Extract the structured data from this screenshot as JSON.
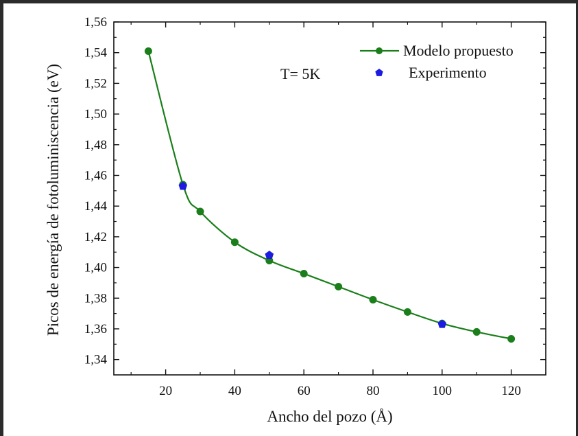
{
  "chart_data": {
    "type": "line",
    "xlabel": "Ancho del pozo (Å)",
    "ylabel": "Picos de energía de fotoluminiscencia (eV)",
    "annotation": "T= 5K",
    "xlim": [
      5,
      130
    ],
    "ylim": [
      1.33,
      1.56
    ],
    "x_ticks": [
      20,
      40,
      60,
      80,
      100,
      120
    ],
    "x_tick_labels": [
      "20",
      "40",
      "60",
      "80",
      "100",
      "120"
    ],
    "y_ticks": [
      1.34,
      1.36,
      1.38,
      1.4,
      1.42,
      1.44,
      1.46,
      1.48,
      1.5,
      1.52,
      1.54,
      1.56
    ],
    "y_tick_labels": [
      "1,34",
      "1,36",
      "1,38",
      "1,40",
      "1,42",
      "1,44",
      "1,46",
      "1,48",
      "1,50",
      "1,52",
      "1,54",
      "1,56"
    ],
    "grid": false,
    "legend_position": "top-right",
    "series": [
      {
        "name": "Modelo propuesto",
        "type": "line-marker",
        "marker": "circle",
        "color": "#1a7f1a",
        "x": [
          15,
          25,
          30,
          40,
          50,
          60,
          70,
          80,
          90,
          100,
          110,
          120
        ],
        "y": [
          1.541,
          1.454,
          1.4365,
          1.4165,
          1.4045,
          1.396,
          1.3875,
          1.379,
          1.371,
          1.3635,
          1.358,
          1.3535
        ]
      },
      {
        "name": "Experimento",
        "type": "scatter",
        "marker": "pentagon",
        "color": "#1c1ce0",
        "x": [
          25,
          50,
          100
        ],
        "y": [
          1.453,
          1.408,
          1.363
        ]
      }
    ]
  }
}
